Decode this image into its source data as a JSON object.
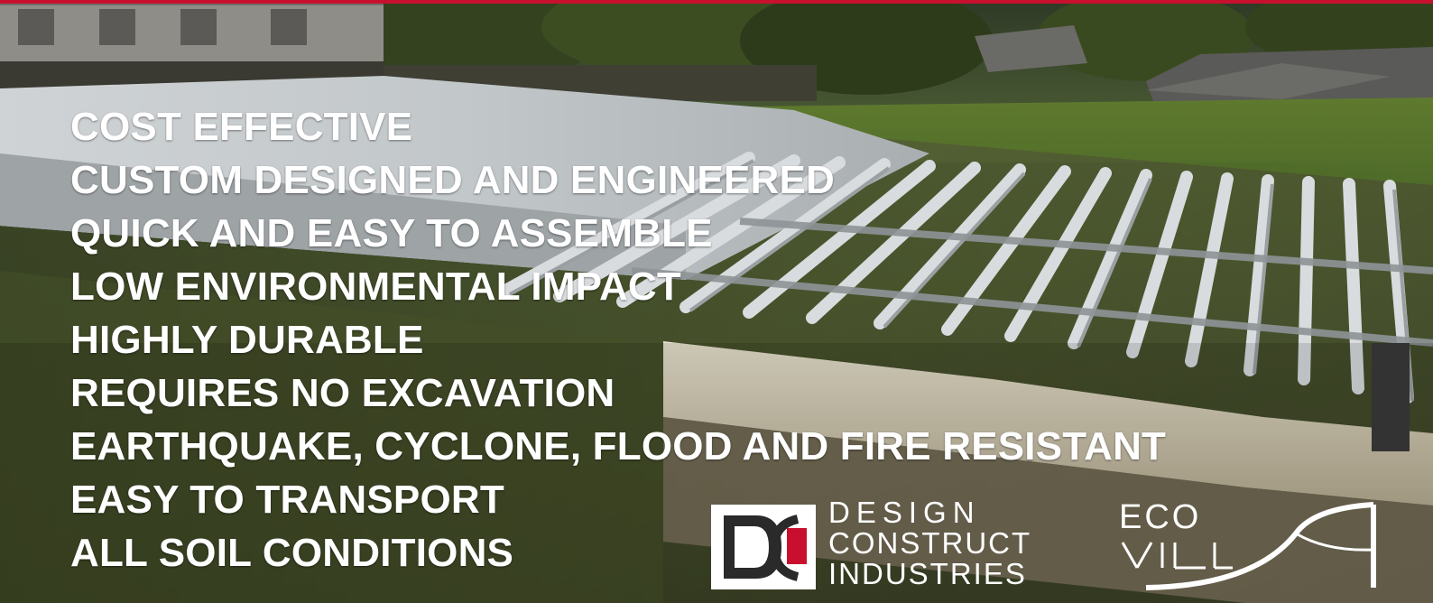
{
  "features": [
    "COST EFFECTIVE",
    "CUSTOM DESIGNED AND ENGINEERED",
    "QUICK AND EASY TO ASSEMBLE",
    "LOW ENVIRONMENTAL IMPACT",
    "HIGHLY DURABLE",
    "REQUIRES NO EXCAVATION",
    "EARTHQUAKE, CYCLONE, FLOOD AND FIRE RESISTANT",
    "EASY TO TRANSPORT",
    "ALL SOIL CONDITIONS"
  ],
  "logos": {
    "dci": {
      "line1": "DESIGN",
      "line2": "CONSTRUCT",
      "line3": "INDUSTRIES"
    },
    "eco": {
      "word": "ECO"
    }
  },
  "colors": {
    "accent_red": "#c8102e",
    "text": "#ffffff"
  }
}
